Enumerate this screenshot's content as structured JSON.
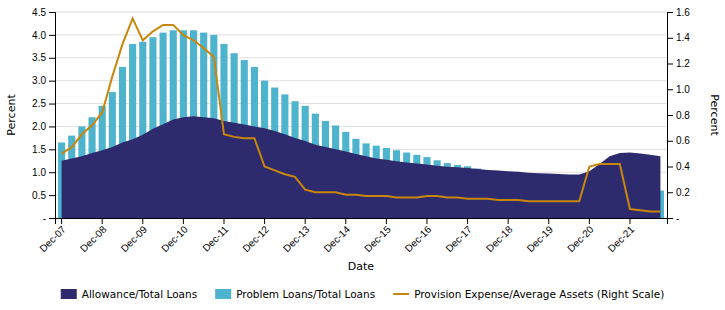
{
  "chart_data": {
    "type": "bar",
    "xlabel": "Date",
    "ylabel": "Percent",
    "y2label": "Percent",
    "categories": [
      "Dec-07",
      null,
      null,
      null,
      "Dec-08",
      null,
      null,
      null,
      "Dec-09",
      null,
      null,
      null,
      "Dec-10",
      null,
      null,
      null,
      "Dec-11",
      null,
      null,
      null,
      "Dec-12",
      null,
      null,
      null,
      "Dec-13",
      null,
      null,
      null,
      "Dec-14",
      null,
      null,
      null,
      "Dec-15",
      null,
      null,
      null,
      "Dec-16",
      null,
      null,
      null,
      "Dec-17",
      null,
      null,
      null,
      "Dec-18",
      null,
      null,
      null,
      "Dec-19",
      null,
      null,
      null,
      "Dec-20",
      null,
      null,
      null,
      "Dec-21",
      null,
      null,
      null
    ],
    "series": [
      {
        "name": "Allowance/Total Loans",
        "type": "area",
        "color": "#2E2A6E",
        "values": [
          1.25,
          1.3,
          1.35,
          1.42,
          1.48,
          1.55,
          1.65,
          1.72,
          1.82,
          1.95,
          2.05,
          2.15,
          2.2,
          2.22,
          2.2,
          2.18,
          2.12,
          2.08,
          2.04,
          2.0,
          1.96,
          1.9,
          1.83,
          1.75,
          1.68,
          1.6,
          1.55,
          1.5,
          1.45,
          1.4,
          1.35,
          1.3,
          1.27,
          1.24,
          1.21,
          1.19,
          1.17,
          1.14,
          1.12,
          1.11,
          1.09,
          1.07,
          1.05,
          1.04,
          1.02,
          1.01,
          0.99,
          0.98,
          0.97,
          0.96,
          0.95,
          0.95,
          1.02,
          1.18,
          1.35,
          1.42,
          1.43,
          1.41,
          1.38,
          1.35
        ]
      },
      {
        "name": "Problem Loans/Total Loans",
        "type": "bar",
        "color": "#4EB3CC",
        "values": [
          1.65,
          1.8,
          2.0,
          2.2,
          2.45,
          2.75,
          3.3,
          3.8,
          3.85,
          3.95,
          4.05,
          4.1,
          4.1,
          4.1,
          4.05,
          4.0,
          3.8,
          3.6,
          3.45,
          3.3,
          3.0,
          2.85,
          2.7,
          2.55,
          2.45,
          2.28,
          2.12,
          2.02,
          1.88,
          1.73,
          1.63,
          1.58,
          1.53,
          1.48,
          1.43,
          1.38,
          1.33,
          1.26,
          1.2,
          1.16,
          1.13,
          1.08,
          1.04,
          1.0,
          0.97,
          0.92,
          0.89,
          0.87,
          0.84,
          0.81,
          0.79,
          0.77,
          0.82,
          0.9,
          0.85,
          0.8,
          0.7,
          0.66,
          0.63,
          0.6
        ]
      },
      {
        "name": "Provision Expense/Average Assets (Right Scale)",
        "type": "line",
        "axis": "y2",
        "color": "#C8860A",
        "values": [
          0.5,
          0.55,
          0.65,
          0.72,
          0.82,
          1.1,
          1.35,
          1.55,
          1.38,
          1.45,
          1.5,
          1.5,
          1.42,
          1.38,
          1.32,
          1.25,
          0.65,
          0.63,
          0.62,
          0.62,
          0.4,
          0.37,
          0.34,
          0.32,
          0.22,
          0.2,
          0.2,
          0.2,
          0.18,
          0.18,
          0.17,
          0.17,
          0.17,
          0.16,
          0.16,
          0.16,
          0.17,
          0.17,
          0.16,
          0.16,
          0.15,
          0.15,
          0.15,
          0.14,
          0.14,
          0.14,
          0.13,
          0.13,
          0.13,
          0.13,
          0.13,
          0.13,
          0.4,
          0.42,
          0.42,
          0.42,
          0.07,
          0.06,
          0.05,
          0.05
        ]
      }
    ],
    "ylim": [
      0,
      4.5
    ],
    "yticks": [
      {
        "value": 0,
        "label": "-"
      },
      0.5,
      {
        "value": 1,
        "label": "1.0"
      },
      1.5,
      {
        "value": 2,
        "label": "2.0"
      },
      2.5,
      {
        "value": 3,
        "label": "3.0"
      },
      3.5,
      {
        "value": 4,
        "label": "4.0"
      },
      4.5
    ],
    "y2lim": [
      0,
      1.6
    ],
    "y2ticks": [
      {
        "value": 0,
        "label": "-"
      },
      0.2,
      0.4,
      0.6,
      0.8,
      {
        "value": 1,
        "label": "1.0"
      },
      1.2,
      1.4,
      1.6
    ],
    "grid": true,
    "legend": "bottom"
  }
}
